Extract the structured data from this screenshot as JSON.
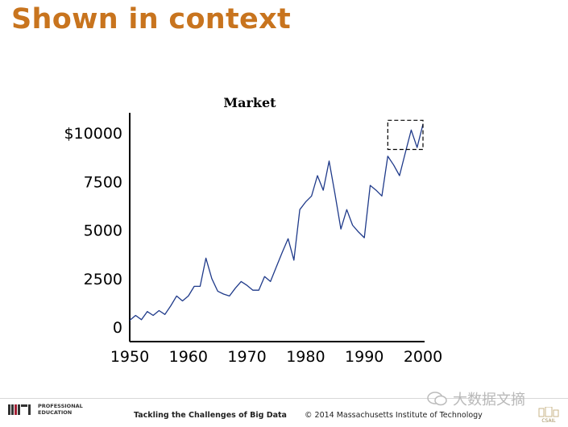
{
  "slide": {
    "title": "Shown in context"
  },
  "chart_data": {
    "type": "line",
    "title": "Market",
    "xlabel": "",
    "ylabel": "",
    "xlim": [
      1950,
      2000
    ],
    "ylim": [
      0,
      10000
    ],
    "x_ticks": [
      1950,
      1960,
      1970,
      1980,
      1990,
      2000
    ],
    "y_ticks": [
      {
        "value": 0,
        "label": "0"
      },
      {
        "value": 2500,
        "label": "2500"
      },
      {
        "value": 5000,
        "label": "5000"
      },
      {
        "value": 7500,
        "label": "7500"
      },
      {
        "value": 10000,
        "label": "$10000"
      }
    ],
    "line_color": "#1f3a8a",
    "grid": false,
    "series": [
      {
        "x": [
          1950,
          1951,
          1952,
          1953,
          1954,
          1955,
          1956,
          1957,
          1958,
          1959,
          1960,
          1961,
          1962,
          1963,
          1964,
          1965,
          1966,
          1967,
          1968,
          1969,
          1970,
          1971,
          1972,
          1973,
          1974,
          1975,
          1976,
          1977,
          1978,
          1979,
          1980,
          1981,
          1982,
          1983,
          1984,
          1985,
          1986,
          1987,
          1988,
          1989,
          1990,
          1991,
          1992,
          1993,
          1994,
          1995,
          1996,
          1997,
          1998,
          1999,
          2000
        ],
        "values": [
          350,
          600,
          380,
          800,
          600,
          850,
          650,
          1100,
          1600,
          1350,
          1600,
          2100,
          2100,
          3550,
          2500,
          1850,
          1700,
          1600,
          2000,
          2350,
          2150,
          1900,
          1900,
          2600,
          2350,
          3100,
          3850,
          4550,
          3450,
          6050,
          6450,
          6750,
          7800,
          7050,
          8550,
          6850,
          5050,
          6050,
          5250,
          4900,
          4600,
          7300,
          7050,
          6750,
          8800,
          8350,
          7800,
          9000,
          10150,
          9250,
          10450
        ]
      }
    ],
    "highlight": {
      "x_range": [
        1994,
        2000
      ],
      "y_range": [
        9150,
        10650
      ],
      "style": "dashed-box"
    }
  },
  "footer": {
    "logo_mark": "MIT",
    "logo_text_line1": "PROFESSIONAL",
    "logo_text_line2": "EDUCATION",
    "course": "Tackling the Challenges of Big Data",
    "copyright": "© 2014 Massachusetts Institute of Technology",
    "watermark": "大数据文摘"
  },
  "colors": {
    "title": "#c8741e",
    "line": "#1f3a8a",
    "mit_red": "#a31f34"
  }
}
